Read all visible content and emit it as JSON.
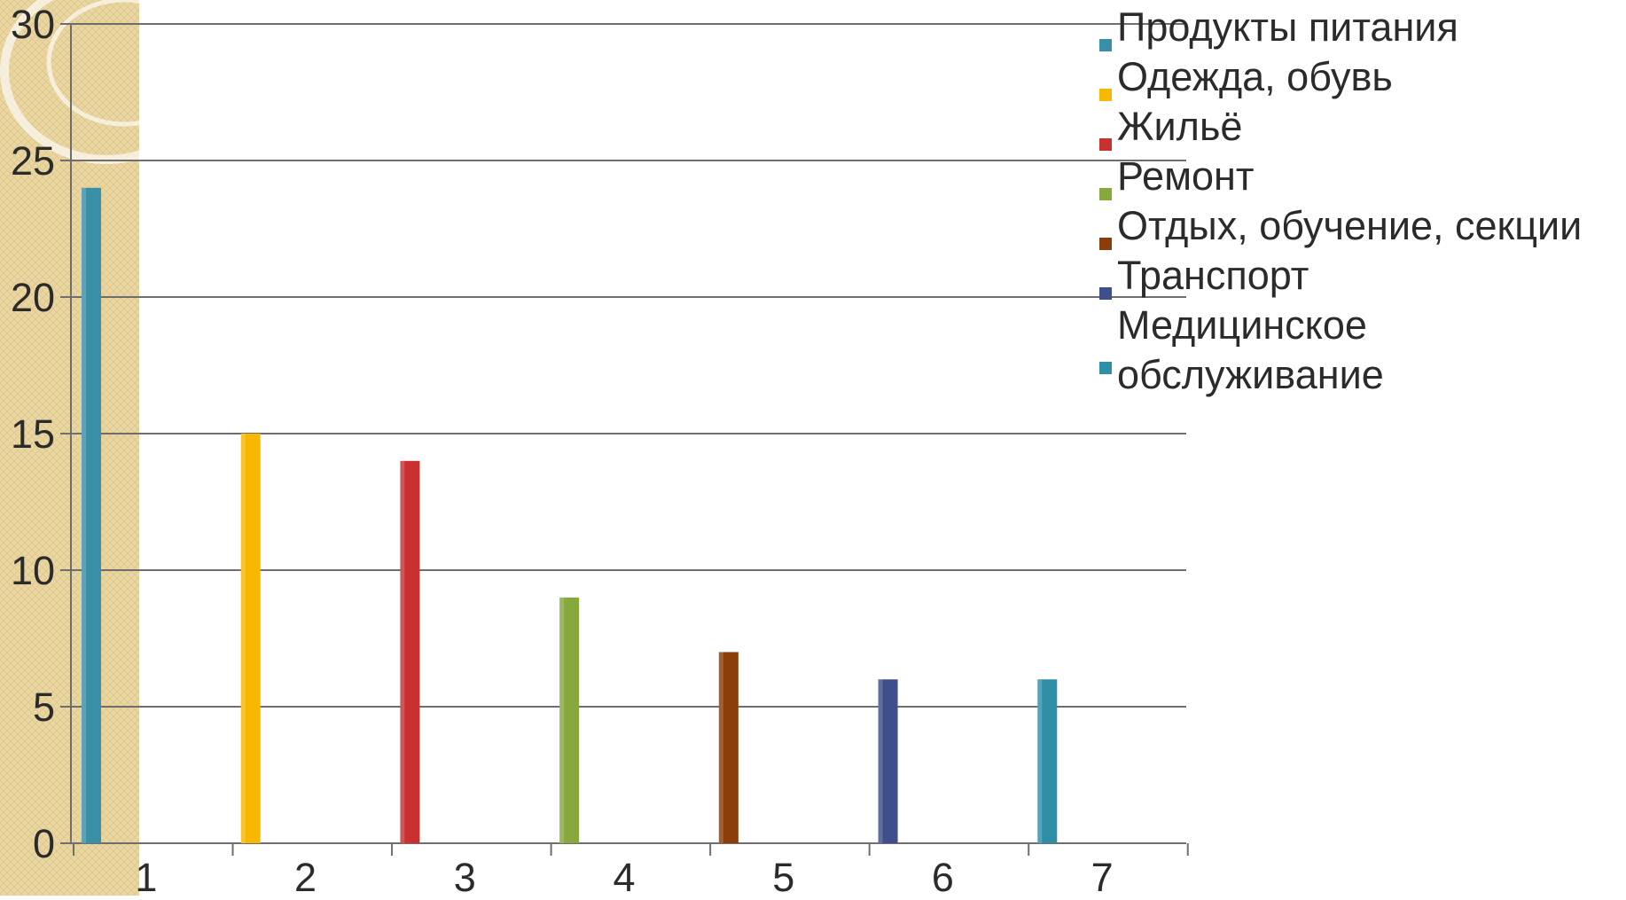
{
  "chart_data": {
    "type": "bar",
    "categories": [
      "1",
      "2",
      "3",
      "4",
      "5",
      "6",
      "7"
    ],
    "series": [
      {
        "name": "Продукты питания",
        "color": "#3a8fa8",
        "values": [
          24,
          null,
          null,
          null,
          null,
          null,
          null
        ]
      },
      {
        "name": "Одежда, обувь",
        "color": "#f9b800",
        "values": [
          null,
          15,
          null,
          null,
          null,
          null,
          null
        ]
      },
      {
        "name": "Жильё",
        "color": "#c93030",
        "values": [
          null,
          null,
          14,
          null,
          null,
          null,
          null
        ]
      },
      {
        "name": "Ремонт",
        "color": "#86a83c",
        "values": [
          null,
          null,
          null,
          9,
          null,
          null,
          null
        ]
      },
      {
        "name": "Отдых, обучение, секции",
        "color": "#8b3d0a",
        "values": [
          null,
          null,
          null,
          null,
          7,
          null,
          null
        ]
      },
      {
        "name": "Транспорт",
        "color": "#3f4f8c",
        "values": [
          null,
          null,
          null,
          null,
          null,
          6,
          null
        ]
      },
      {
        "name": "Медицинское обслуживание",
        "color": "#2f8fa6",
        "values": [
          null,
          null,
          null,
          null,
          null,
          null,
          6
        ]
      }
    ],
    "legend_lines": [
      [
        "Продукты питания"
      ],
      [
        "Одежда, обувь"
      ],
      [
        "Жильё"
      ],
      [
        "Ремонт"
      ],
      [
        "Отдых, обучение, секции"
      ],
      [
        "Транспорт"
      ],
      [
        "Медицинское",
        "обслуживание"
      ]
    ],
    "yticks": [
      "0",
      "5",
      "10",
      "15",
      "20",
      "25",
      "30"
    ],
    "ylim": [
      0,
      30
    ],
    "grid": true,
    "legend": "right",
    "title": "",
    "xlabel": "",
    "ylabel": ""
  }
}
